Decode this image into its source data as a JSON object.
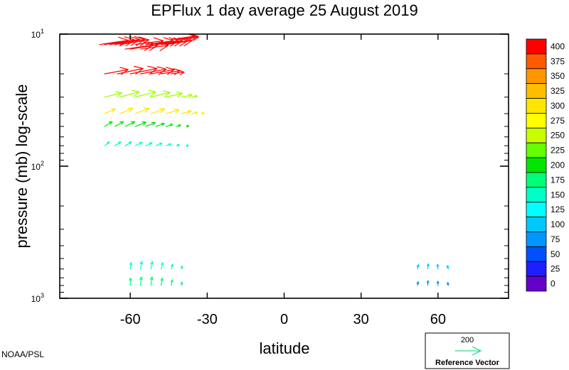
{
  "chart_data": {
    "type": "vector-field",
    "title": "EPFlux  1 day average  25 August    2019",
    "xlabel": "latitude",
    "ylabel": "pressure (mb)  log-scale",
    "x_ticks": [
      "-60",
      "-30",
      "0",
      "30",
      "60"
    ],
    "x_tick_values": [
      -60,
      -30,
      0,
      30,
      60
    ],
    "xlim": [
      -87.5,
      87.5
    ],
    "ylim": [
      1000,
      10
    ],
    "y_scale": "log",
    "y_ticks": [
      {
        "base": "10",
        "exp": "1",
        "value": 10
      },
      {
        "base": "10",
        "exp": "2",
        "value": 100
      },
      {
        "base": "10",
        "exp": "3",
        "value": 1000
      }
    ],
    "colorbar": {
      "labels": [
        "400",
        "375",
        "350",
        "325",
        "300",
        "275",
        "250",
        "225",
        "200",
        "175",
        "150",
        "125",
        "100",
        "75",
        "50",
        "25",
        "0"
      ],
      "colors": [
        "#ff0000",
        "#ff5a00",
        "#ff9600",
        "#ffbe00",
        "#ffe600",
        "#ffff00",
        "#c8ff00",
        "#64ff00",
        "#00e600",
        "#00ff78",
        "#00ffc8",
        "#00ffff",
        "#00c8ff",
        "#0096ff",
        "#0050ff",
        "#1e1eff",
        "#6400c8"
      ]
    },
    "reference_vector": {
      "magnitude_label": "200",
      "caption": "Reference Vector",
      "color": "#32dc8c"
    },
    "series": [
      {
        "x": [
          -72,
          -70,
          -68,
          -66,
          -64,
          -62,
          -60,
          -58
        ],
        "y": [
          12,
          12,
          12,
          12,
          12,
          13,
          13,
          12
        ],
        "u": [
          135,
          140,
          140,
          140,
          135,
          130,
          130,
          130
        ],
        "v": [
          20,
          22,
          24,
          24,
          22,
          20,
          20,
          18
        ],
        "color": "#ff0000"
      },
      {
        "x": [
          -56,
          -54,
          -52,
          -50,
          -48,
          -46,
          -44,
          -42,
          -40
        ],
        "y": [
          13,
          12,
          12,
          12,
          12,
          12,
          11,
          11,
          11
        ],
        "u": [
          130,
          130,
          130,
          125,
          125,
          120,
          110,
          100,
          80
        ],
        "v": [
          18,
          18,
          18,
          18,
          18,
          18,
          16,
          16,
          12
        ],
        "color": "#ff0000"
      },
      {
        "x": [
          -70,
          -65,
          -60,
          -56,
          -52,
          -48,
          -44
        ],
        "y": [
          20,
          20,
          20,
          20,
          20,
          20,
          20
        ],
        "u": [
          110,
          120,
          125,
          120,
          110,
          90,
          60
        ],
        "v": [
          20,
          25,
          25,
          22,
          20,
          15,
          8
        ],
        "color": "#ff0000"
      },
      {
        "x": [
          -70,
          -64,
          -58,
          -52,
          -46,
          -40,
          -36
        ],
        "y": [
          30,
          30,
          30,
          30,
          30,
          30,
          30
        ],
        "u": [
          80,
          90,
          95,
          90,
          75,
          50,
          25
        ],
        "v": [
          20,
          25,
          25,
          22,
          18,
          10,
          5
        ],
        "color": "#a0ff00"
      },
      {
        "x": [
          -70,
          -64,
          -58,
          -52,
          -46,
          -40,
          -36,
          -32
        ],
        "y": [
          40,
          40,
          40,
          40,
          40,
          40,
          40,
          40
        ],
        "u": [
          50,
          60,
          65,
          65,
          60,
          45,
          25,
          10
        ],
        "v": [
          22,
          25,
          25,
          22,
          18,
          12,
          6,
          2
        ],
        "color": "#ffe600"
      },
      {
        "x": [
          -70,
          -66,
          -62,
          -58,
          -54,
          -50,
          -46,
          -42,
          -38
        ],
        "y": [
          50,
          50,
          50,
          50,
          50,
          50,
          50,
          50,
          50
        ],
        "u": [
          35,
          40,
          45,
          50,
          45,
          40,
          30,
          20,
          10
        ],
        "v": [
          22,
          22,
          22,
          20,
          18,
          14,
          10,
          6,
          3
        ],
        "color": "#00e600"
      },
      {
        "x": [
          -70,
          -66,
          -62,
          -58,
          -54,
          -50,
          -46,
          -42,
          -38
        ],
        "y": [
          70,
          70,
          70,
          70,
          70,
          70,
          70,
          70,
          70
        ],
        "u": [
          22,
          28,
          30,
          32,
          30,
          28,
          22,
          14,
          8
        ],
        "v": [
          18,
          18,
          18,
          16,
          14,
          12,
          8,
          4,
          2
        ],
        "color": "#00ffc8"
      },
      {
        "x": [
          -60,
          -56,
          -52,
          -48,
          -44,
          -40
        ],
        "y": [
          600,
          600,
          600,
          600,
          600,
          600
        ],
        "u": [
          4,
          6,
          8,
          8,
          6,
          4
        ],
        "v": [
          30,
          35,
          35,
          30,
          22,
          14
        ],
        "color": "#00ffc8"
      },
      {
        "x": [
          -60,
          -56,
          -52,
          -48,
          -44,
          -40
        ],
        "y": [
          800,
          800,
          800,
          800,
          800,
          800
        ],
        "u": [
          2,
          4,
          6,
          6,
          4,
          2
        ],
        "v": [
          35,
          40,
          40,
          34,
          26,
          16
        ],
        "color": "#00ff78"
      },
      {
        "x": [
          52,
          56,
          60,
          64
        ],
        "y": [
          600,
          600,
          600,
          600
        ],
        "u": [
          4,
          2,
          -2,
          -4
        ],
        "v": [
          20,
          24,
          22,
          16
        ],
        "color": "#00c8ff"
      },
      {
        "x": [
          52,
          56,
          60,
          64
        ],
        "y": [
          800,
          800,
          800,
          800
        ],
        "u": [
          3,
          1,
          -1,
          -3
        ],
        "v": [
          18,
          22,
          20,
          14
        ],
        "color": "#0096ff"
      }
    ]
  },
  "footer": {
    "credit": "NOAA/PSL"
  }
}
